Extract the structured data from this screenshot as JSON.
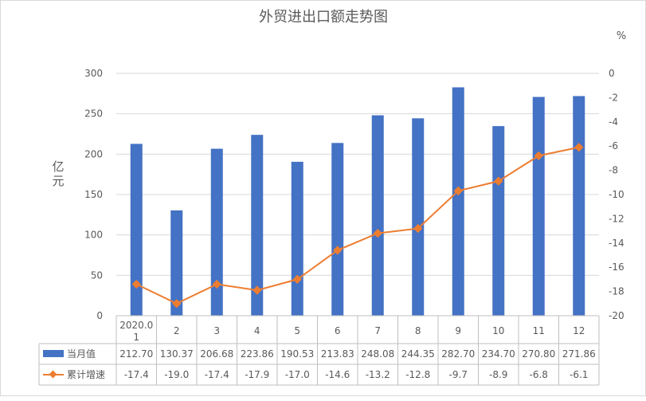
{
  "chart_data": {
    "type": "bar",
    "title": "外贸进出口额走势图",
    "categories": [
      "2020.01",
      "2",
      "3",
      "4",
      "5",
      "6",
      "7",
      "8",
      "9",
      "10",
      "11",
      "12"
    ],
    "ylabel": "亿元",
    "y2label": "%",
    "ylim": [
      0,
      300
    ],
    "y2lim": [
      -20,
      0
    ],
    "yticks": [
      0,
      50,
      100,
      150,
      200,
      250,
      300
    ],
    "y2ticks": [
      0,
      -2,
      -4,
      -6,
      -8,
      -10,
      -12,
      -14,
      -16,
      -18,
      -20
    ],
    "grid": true,
    "legend_placement": "bottom data table",
    "series": [
      {
        "name": "当月值",
        "type": "bar",
        "axis": "left",
        "color": "#4472C4",
        "values": [
          212.7,
          130.37,
          206.68,
          223.86,
          190.53,
          213.83,
          248.08,
          244.35,
          282.7,
          234.7,
          270.8,
          271.86
        ],
        "labels": [
          "212.70",
          "130.37",
          "206.68",
          "223.86",
          "190.53",
          "213.83",
          "248.08",
          "244.35",
          "282.70",
          "234.70",
          "270.80",
          "271.86"
        ]
      },
      {
        "name": "累计增速",
        "type": "line",
        "axis": "right",
        "color": "#ED7D31",
        "values": [
          -17.4,
          -19.0,
          -17.4,
          -17.9,
          -17.0,
          -14.6,
          -13.2,
          -12.8,
          -9.7,
          -8.9,
          -6.8,
          -6.1
        ],
        "labels": [
          "-17.4",
          "-19.0",
          "-17.4",
          "-17.9",
          "-17.0",
          "-14.6",
          "-13.2",
          "-12.8",
          "-9.7",
          "-8.9",
          "-6.8",
          "-6.1"
        ]
      }
    ]
  }
}
